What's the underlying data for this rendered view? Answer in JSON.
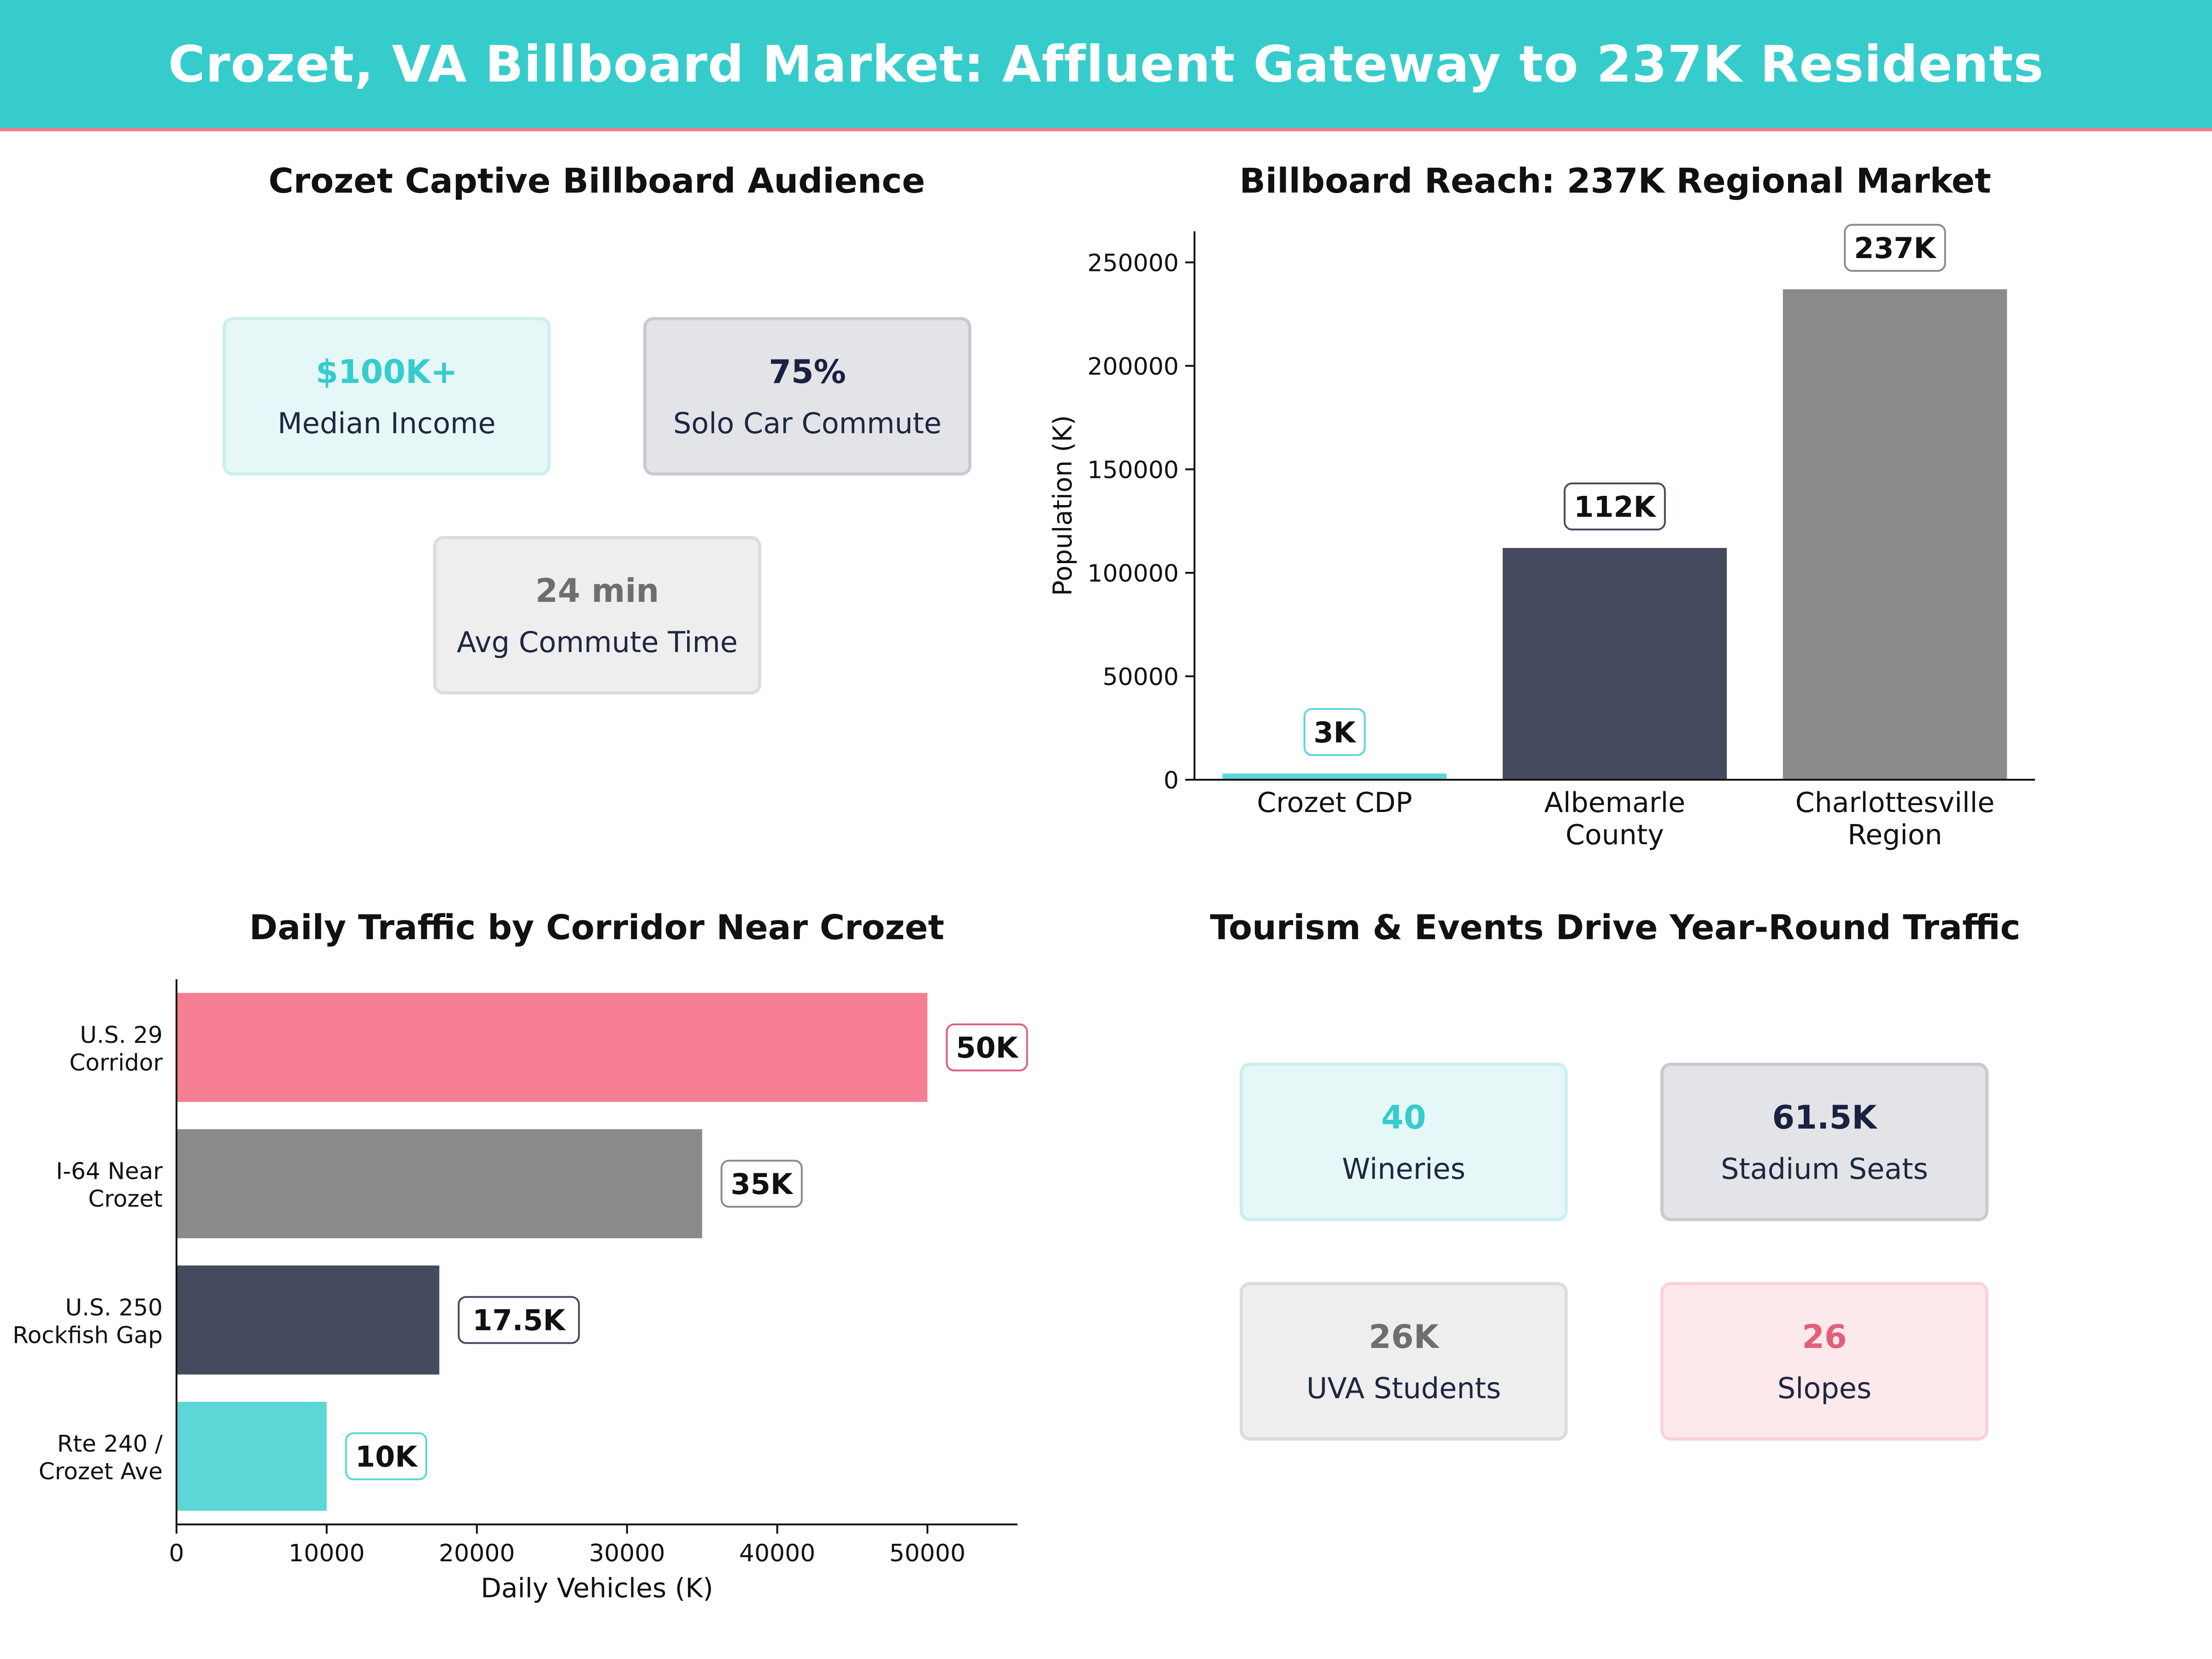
{
  "header": {
    "title": "Crozet, VA Billboard Market: Affluent Gateway to 237K Residents",
    "background": "#36cccc",
    "accent_line": "#f37b8e"
  },
  "audience_panel": {
    "title": "Crozet Captive Billboard Audience",
    "cards": [
      {
        "value": "$100K+",
        "label": "Median Income",
        "value_color": "#36cccc",
        "fill": "#e6f7f7",
        "border": "#ccefef"
      },
      {
        "value": "75%",
        "label": "Solo Car Commute",
        "value_color": "#1b2140",
        "fill": "#e3e4e8",
        "border": "#c8cad0"
      },
      {
        "value": "24 min",
        "label": "Avg Commute Time",
        "value_color": "#6e6e6e",
        "fill": "#eeeeee",
        "border": "#dcdcdc"
      }
    ]
  },
  "tourism_panel": {
    "title": "Tourism & Events Drive Year-Round Traffic",
    "cards": [
      {
        "value": "40",
        "label": "Wineries",
        "value_color": "#36cccc",
        "fill": "#e6f7f7",
        "border": "#ccefef"
      },
      {
        "value": "61.5K",
        "label": "Stadium Seats",
        "value_color": "#1b2140",
        "fill": "#e3e4e8",
        "border": "#c8cad0"
      },
      {
        "value": "26K",
        "label": "UVA Students",
        "value_color": "#6e6e6e",
        "fill": "#eeeeee",
        "border": "#dcdcdc"
      },
      {
        "value": "26",
        "label": "Slopes",
        "value_color": "#e0607a",
        "fill": "#fde8ec",
        "border": "#f9d2da"
      }
    ]
  },
  "chart_data": [
    {
      "type": "bar",
      "title": "Billboard Reach: 237K Regional Market",
      "ylabel": "Population (K)",
      "categories": [
        [
          "Crozet CDP"
        ],
        [
          "Albemarle",
          "County"
        ],
        [
          "Charlottesville",
          "Region"
        ]
      ],
      "values": [
        3000,
        112000,
        237000
      ],
      "data_labels": [
        "3K",
        "112K",
        "237K"
      ],
      "colors": [
        "#5cd6d6",
        "#464a5e",
        "#8a8a8a"
      ],
      "label_borders": [
        "#5cd6d6",
        "#464a5e",
        "#8a8a8a"
      ],
      "ylim": [
        0,
        265000
      ],
      "yticks": [
        0,
        50000,
        100000,
        150000,
        200000,
        250000
      ]
    },
    {
      "type": "bar",
      "orientation": "horizontal",
      "title": "Daily Traffic by Corridor Near Crozet",
      "xlabel": "Daily Vehicles (K)",
      "categories": [
        [
          "U.S. 29",
          "Corridor"
        ],
        [
          "I-64 Near",
          "Crozet"
        ],
        [
          "U.S. 250",
          "Rockfish Gap"
        ],
        [
          "Rte 240 /",
          "Crozet Ave"
        ]
      ],
      "values": [
        50000,
        35000,
        17500,
        10000
      ],
      "data_labels": [
        "50K",
        "35K",
        "17.5K",
        "10K"
      ],
      "colors": [
        "#f57e93",
        "#8a8a8a",
        "#464a5e",
        "#5cd6d6"
      ],
      "label_borders": [
        "#e0607a",
        "#8a8a8a",
        "#464a5e",
        "#5cd6d6"
      ],
      "xlim": [
        0,
        56000
      ],
      "xticks": [
        0,
        10000,
        20000,
        30000,
        40000,
        50000
      ]
    }
  ]
}
